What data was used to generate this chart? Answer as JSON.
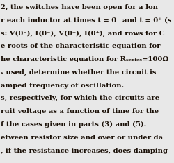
{
  "lines": [
    "2, the switches have been open for a lon",
    "r each inductor at times t = 0⁻ and t = 0⁺ (s",
    "s: V(0⁻), I(0⁻), V(0⁺), I(0⁺), and rows for C",
    "e roots of the characteristic equation for",
    "he characteristic equation for Rₛₑᵣᵢₑₛ=100Ω",
    "ₛ used, determine whether the circuit is",
    "amped frequency of oscillation.",
    "s, respectively, for which the circuits are ",
    "ruit voltage as a function of time for the ",
    "f the cases given in parts (3) and (5).",
    "etween resistor size and over or under da",
    ", if the resistance increases, does damping"
  ],
  "bg_color": "#e8e8e8",
  "text_color": "#1a1007",
  "font_size": 7.2,
  "fig_width": 2.5,
  "fig_height": 2.35,
  "dpi": 100
}
